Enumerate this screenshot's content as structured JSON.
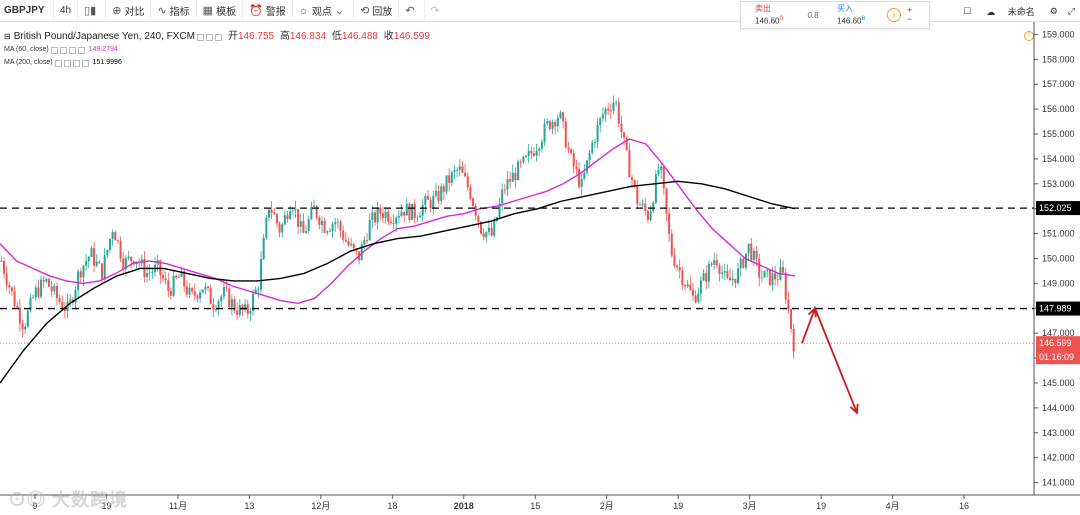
{
  "toolbar": {
    "symbol": "GBPJPY",
    "interval": "4h",
    "compare": "对比",
    "indicators": "指标",
    "templates": "模板",
    "alert": "警报",
    "ideas": "观点",
    "replay": "回放"
  },
  "trade": {
    "sell_label": "卖出",
    "sell_price": "146.60",
    "sell_sup": "0",
    "spread": "0.8",
    "buy_label": "买入",
    "buy_price": "146.60",
    "buy_sup": "8"
  },
  "right_tools": {
    "unnamed": "未命名"
  },
  "legend": {
    "title": "British Pound/Japanese Yen, 240, FXCM",
    "open_label": "开",
    "open": "146.755",
    "high_label": "高",
    "high": "146.834",
    "low_label": "低",
    "low": "146.488",
    "close_label": "收",
    "close": "146.599",
    "ma60": "MA (60, close)",
    "ma60_val": "149.2794",
    "ma200": "MA (200, close)",
    "ma200_val": "151.9996"
  },
  "watermark": "大数跨境",
  "colors": {
    "up": "#26a69a",
    "down": "#ef5350",
    "ma60": "#d62ad6",
    "ma200": "#000000",
    "arrow": "#d11a1a",
    "level_label_bg": "#000000",
    "price_label_bg": "#ef5350"
  },
  "chart_data": {
    "type": "candlestick",
    "ylim": [
      140.5,
      159.5
    ],
    "yticks": [
      159,
      158,
      157,
      156,
      155,
      154,
      153,
      152,
      151,
      150,
      149,
      148,
      147,
      146,
      145,
      144,
      143,
      142,
      141
    ],
    "ytick_labels": [
      "159.000",
      "158.000",
      "157.000",
      "156.000",
      "155.000",
      "154.000",
      "153.000",
      "152.000",
      "151.000",
      "150.000",
      "149.000",
      "148.000",
      "147.000",
      "146.000",
      "145.000",
      "144.000",
      "143.000",
      "142.000",
      "141.000"
    ],
    "xticks": [
      {
        "label": "9",
        "x": 0.0,
        "bold": false
      },
      {
        "label": "19",
        "x": 1,
        "bold": false
      },
      {
        "label": "11月",
        "x": 2,
        "bold": false
      },
      {
        "label": "13",
        "x": 3,
        "bold": false
      },
      {
        "label": "12月",
        "x": 4,
        "bold": false
      },
      {
        "label": "18",
        "x": 5,
        "bold": false
      },
      {
        "label": "2018",
        "x": 6,
        "bold": true
      },
      {
        "label": "15",
        "x": 7,
        "bold": false
      },
      {
        "label": "2月",
        "x": 8,
        "bold": false
      },
      {
        "label": "19",
        "x": 9,
        "bold": false
      },
      {
        "label": "3月",
        "x": 10,
        "bold": false
      },
      {
        "label": "19",
        "x": 11,
        "bold": false
      },
      {
        "label": "4月",
        "x": 12,
        "bold": false
      },
      {
        "label": "16",
        "x": 13,
        "bold": false
      }
    ],
    "price_path": [
      149.9,
      148.5,
      147.3,
      148.6,
      149.1,
      148.4,
      147.9,
      149.5,
      150.2,
      149.4,
      151.3,
      149.8,
      150.1,
      149.4,
      149.6,
      148.7,
      149.3,
      148.4,
      148.9,
      148.2,
      148.6,
      148.0,
      147.8,
      148.9,
      152.2,
      151.1,
      152.4,
      150.9,
      152.0,
      151.3,
      151.5,
      150.6,
      150.0,
      151.4,
      151.9,
      151.7,
      152.0,
      151.8,
      152.2,
      152.4,
      153.1,
      153.6,
      152.7,
      151.2,
      150.9,
      152.8,
      153.4,
      153.9,
      154.6,
      155.4,
      155.8,
      154.0,
      152.9,
      154.7,
      155.9,
      156.4,
      154.1,
      152.3,
      151.7,
      153.8,
      150.3,
      149.3,
      148.4,
      149.2,
      150.1,
      149.0,
      149.4,
      150.5,
      149.3,
      149.2,
      149.4,
      146.6
    ],
    "ma60": [
      150.6,
      149.9,
      149.6,
      149.3,
      149.1,
      149.0,
      149.1,
      149.4,
      149.8,
      149.9,
      149.8,
      149.6,
      149.4,
      149.2,
      148.9,
      148.7,
      148.5,
      148.3,
      148.2,
      148.4,
      149.0,
      149.7,
      150.3,
      150.8,
      151.2,
      151.3,
      151.5,
      151.7,
      151.8,
      152.0,
      152.1,
      152.3,
      152.5,
      152.7,
      153.0,
      153.4,
      153.9,
      154.4,
      154.8,
      154.6,
      153.8,
      152.9,
      152.0,
      151.2,
      150.6,
      150.0,
      149.7,
      149.4,
      149.3
    ],
    "ma200": [
      145.0,
      146.3,
      147.4,
      148.2,
      148.8,
      149.3,
      149.6,
      149.6,
      149.4,
      149.2,
      149.1,
      149.1,
      149.2,
      149.4,
      149.8,
      150.3,
      150.6,
      150.8,
      150.9,
      151.1,
      151.3,
      151.5,
      151.8,
      152.0,
      152.3,
      152.5,
      152.7,
      152.9,
      153.0,
      153.1,
      153.0,
      152.8,
      152.5,
      152.2,
      152.0
    ],
    "levels": [
      {
        "value": 152.025,
        "label": "152.025"
      },
      {
        "value": 147.989,
        "label": "147.989"
      }
    ],
    "last_price": {
      "value": 146.599,
      "label": "146.599",
      "countdown": "01:16:09"
    },
    "forecast_arrow": [
      [
        146.6,
        0
      ],
      [
        148.0,
        1
      ],
      [
        143.8,
        2
      ]
    ]
  }
}
